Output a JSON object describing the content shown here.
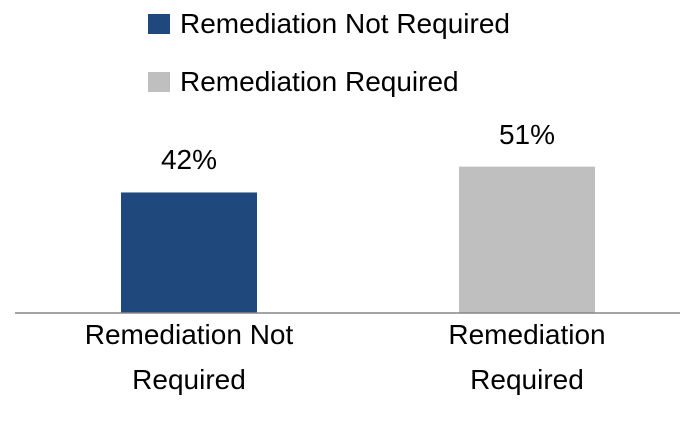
{
  "chart_data": {
    "type": "bar",
    "categories": [
      "Remediation Not Required",
      "Remediation Required"
    ],
    "values": [
      42,
      51
    ],
    "value_labels": [
      "42%",
      "51%"
    ],
    "colors": [
      "#1f497d",
      "#bfbfbf"
    ]
  }
}
